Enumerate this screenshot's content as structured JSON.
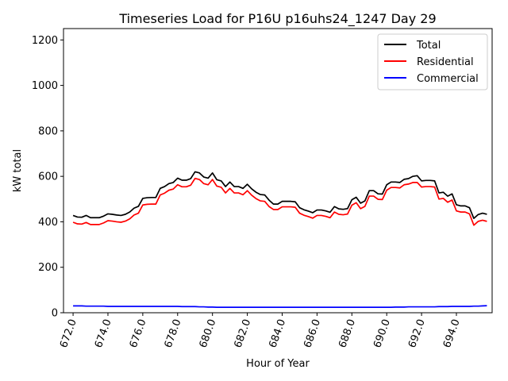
{
  "chart_data": {
    "type": "line",
    "title": "Timeseries Load for P16U p16uhs24_1247  Day 29",
    "xlabel": "Hour of Year",
    "ylabel": "kW total",
    "xlim": [
      671.45,
      696.05
    ],
    "ylim": [
      0,
      1250
    ],
    "xticks": [
      672,
      674,
      676,
      678,
      680,
      682,
      684,
      686,
      688,
      690,
      692,
      694
    ],
    "xtick_labels": [
      "672.0",
      "674.0",
      "676.0",
      "678.0",
      "680.0",
      "682.0",
      "684.0",
      "686.0",
      "688.0",
      "690.0",
      "692.0",
      "694.0"
    ],
    "yticks": [
      0,
      200,
      400,
      600,
      800,
      1000,
      1200
    ],
    "ytick_labels": [
      "0",
      "200",
      "400",
      "600",
      "800",
      "1000",
      "1200"
    ],
    "legend": {
      "position": "upper right",
      "entries": [
        "Total",
        "Residential",
        "Commercial"
      ]
    },
    "x_start": 672,
    "x_step": 0.25,
    "series": [
      {
        "name": "Total",
        "color": "#000000",
        "values": [
          428,
          421,
          420,
          428,
          418,
          418,
          418,
          425,
          435,
          433,
          430,
          428,
          433,
          443,
          460,
          468,
          503,
          506,
          507,
          507,
          547,
          555,
          568,
          573,
          592,
          583,
          583,
          590,
          620,
          615,
          597,
          592,
          615,
          585,
          580,
          555,
          575,
          555,
          555,
          547,
          565,
          545,
          530,
          520,
          518,
          495,
          478,
          478,
          490,
          490,
          490,
          488,
          462,
          453,
          447,
          440,
          452,
          452,
          448,
          442,
          467,
          457,
          455,
          458,
          497,
          508,
          482,
          492,
          537,
          537,
          523,
          522,
          563,
          575,
          575,
          573,
          587,
          590,
          600,
          603,
          580,
          582,
          582,
          580,
          527,
          530,
          513,
          523,
          475,
          470,
          470,
          462,
          415,
          432,
          438,
          433
        ]
      },
      {
        "name": "Residential",
        "color": "#ff0000",
        "values": [
          398,
          391,
          390,
          397,
          388,
          388,
          388,
          395,
          405,
          403,
          400,
          398,
          403,
          413,
          430,
          438,
          474,
          477,
          478,
          478,
          518,
          526,
          539,
          544,
          563,
          554,
          554,
          561,
          591,
          586,
          568,
          563,
          586,
          557,
          552,
          527,
          547,
          527,
          527,
          519,
          537,
          517,
          502,
          492,
          490,
          467,
          454,
          454,
          466,
          466,
          466,
          464,
          438,
          429,
          423,
          416,
          428,
          428,
          424,
          418,
          443,
          433,
          431,
          434,
          473,
          484,
          458,
          468,
          513,
          513,
          499,
          498,
          539,
          551,
          551,
          549,
          563,
          566,
          573,
          573,
          553,
          555,
          555,
          553,
          500,
          503,
          486,
          496,
          448,
          443,
          443,
          435,
          385,
          402,
          407,
          402
        ]
      },
      {
        "name": "Commercial",
        "color": "#0000ff",
        "values": [
          30,
          30,
          30,
          29,
          29,
          29,
          29,
          29,
          28,
          28,
          28,
          28,
          28,
          28,
          28,
          28,
          28,
          28,
          28,
          28,
          28,
          28,
          28,
          28,
          28,
          27,
          27,
          27,
          27,
          26,
          26,
          25,
          25,
          24,
          24,
          24,
          24,
          24,
          24,
          24,
          24,
          24,
          24,
          24,
          24,
          24,
          24,
          24,
          24,
          24,
          24,
          24,
          24,
          24,
          24,
          24,
          24,
          24,
          24,
          24,
          24,
          24,
          24,
          24,
          24,
          24,
          24,
          24,
          24,
          24,
          24,
          24,
          24,
          24,
          25,
          25,
          25,
          26,
          26,
          26,
          26,
          26,
          26,
          26,
          27,
          27,
          27,
          28,
          28,
          28,
          28,
          28,
          29,
          29,
          30,
          31
        ]
      }
    ]
  }
}
